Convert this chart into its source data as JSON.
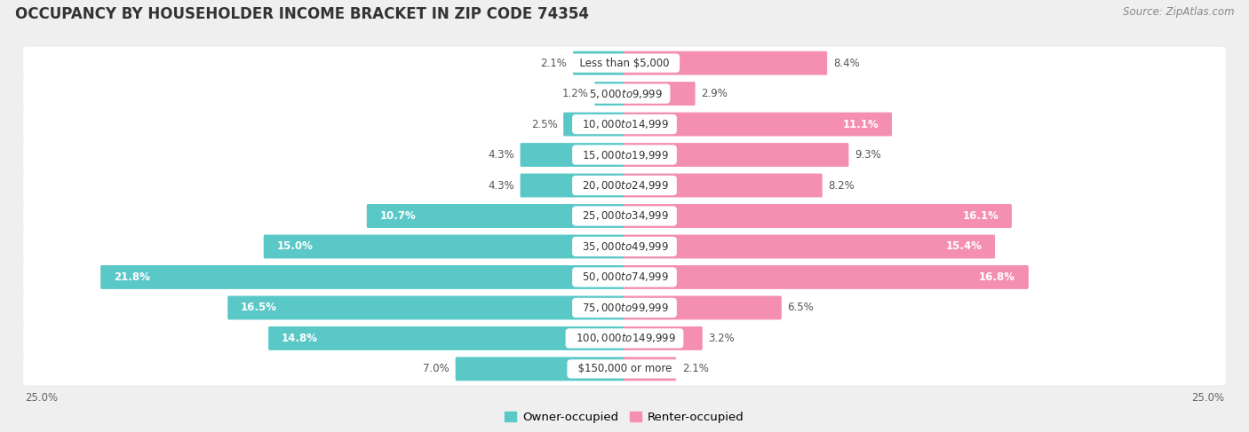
{
  "title": "OCCUPANCY BY HOUSEHOLDER INCOME BRACKET IN ZIP CODE 74354",
  "source": "Source: ZipAtlas.com",
  "categories": [
    "Less than $5,000",
    "$5,000 to $9,999",
    "$10,000 to $14,999",
    "$15,000 to $19,999",
    "$20,000 to $24,999",
    "$25,000 to $34,999",
    "$35,000 to $49,999",
    "$50,000 to $74,999",
    "$75,000 to $99,999",
    "$100,000 to $149,999",
    "$150,000 or more"
  ],
  "owner_values": [
    2.1,
    1.2,
    2.5,
    4.3,
    4.3,
    10.7,
    15.0,
    21.8,
    16.5,
    14.8,
    7.0
  ],
  "renter_values": [
    8.4,
    2.9,
    11.1,
    9.3,
    8.2,
    16.1,
    15.4,
    16.8,
    6.5,
    3.2,
    2.1
  ],
  "owner_color": "#5BC8C8",
  "renter_color": "#F48FB1",
  "background_color": "#efefef",
  "bar_background": "#ffffff",
  "xlim": 25.0,
  "legend_labels": [
    "Owner-occupied",
    "Renter-occupied"
  ],
  "title_fontsize": 12,
  "label_fontsize": 8.5,
  "source_fontsize": 8.5,
  "value_fontsize": 8.5
}
